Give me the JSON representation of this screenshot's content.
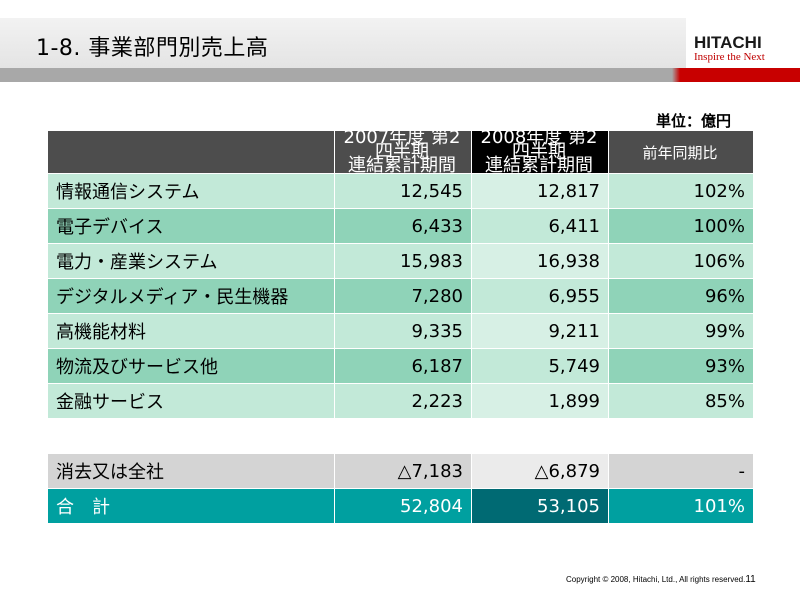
{
  "title": "1-8. 事業部門別売上高",
  "logo": {
    "main": "HITACHI",
    "tagline": "Inspire the Next"
  },
  "unit": "単位：億円",
  "columns": {
    "col1": "2007年度 第2四半期\n連結累計期間",
    "col2": "2008年度 第2四半期\n連結累計期間",
    "col3": "前年同期比"
  },
  "rows": [
    {
      "name": "情報通信システム",
      "v2007": "12,545",
      "v2008": "12,817",
      "ratio": "102%"
    },
    {
      "name": "電子デバイス",
      "v2007": "6,433",
      "v2008": "6,411",
      "ratio": "100%"
    },
    {
      "name": "電力・産業システム",
      "v2007": "15,983",
      "v2008": "16,938",
      "ratio": "106%"
    },
    {
      "name": "デジタルメディア・民生機器",
      "v2007": "7,280",
      "v2008": "6,955",
      "ratio": "96%"
    },
    {
      "name": "高機能材料",
      "v2007": "9,335",
      "v2008": "9,211",
      "ratio": "99%"
    },
    {
      "name": "物流及びサービス他",
      "v2007": "6,187",
      "v2008": "5,749",
      "ratio": "93%"
    },
    {
      "name": "金融サービス",
      "v2007": "2,223",
      "v2008": "1,899",
      "ratio": "85%"
    }
  ],
  "elimination": {
    "name": "消去又は全社",
    "v2007": "△7,183",
    "v2008": "△6,879",
    "ratio": "-"
  },
  "total": {
    "name": "合　計",
    "v2007": "52,804",
    "v2008": "53,105",
    "ratio": "101%"
  },
  "footer": {
    "copyright": "Copyright © 2008, Hitachi, Ltd., All rights reserved.",
    "page": "11"
  },
  "colors": {
    "header_dark": "#4d4d4d",
    "total_teal": "#00a0a0",
    "accent_red": "#c80000"
  }
}
